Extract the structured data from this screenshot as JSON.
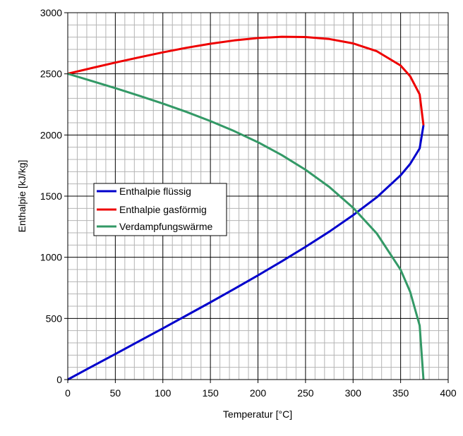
{
  "chart_data": {
    "type": "line",
    "title": "",
    "xlabel": "Temperatur [°C]",
    "ylabel": "Enthalpie [kJ/kg]",
    "xlim": [
      0,
      400
    ],
    "ylim": [
      0,
      3000
    ],
    "xticks": [
      0,
      50,
      100,
      150,
      200,
      250,
      300,
      350,
      400
    ],
    "yticks": [
      0,
      500,
      1000,
      1500,
      2000,
      2500,
      3000
    ],
    "x_minor_step": 10,
    "y_minor_step": 100,
    "grid": true,
    "legend_position": "left-center",
    "series": [
      {
        "name": "Enthalpie flüssig",
        "color": "#0000cc",
        "points": [
          [
            0,
            0
          ],
          [
            25,
            105
          ],
          [
            50,
            209
          ],
          [
            75,
            314
          ],
          [
            100,
            419
          ],
          [
            125,
            525
          ],
          [
            150,
            632
          ],
          [
            175,
            741
          ],
          [
            200,
            852
          ],
          [
            225,
            967
          ],
          [
            250,
            1085
          ],
          [
            275,
            1210
          ],
          [
            300,
            1344
          ],
          [
            325,
            1491
          ],
          [
            350,
            1670
          ],
          [
            360,
            1763
          ],
          [
            370,
            1890
          ],
          [
            374,
            2080
          ]
        ]
      },
      {
        "name": "Enthalpie gasförmig",
        "color": "#ee0000",
        "points": [
          [
            0,
            2501
          ],
          [
            25,
            2547
          ],
          [
            50,
            2592
          ],
          [
            75,
            2635
          ],
          [
            100,
            2676
          ],
          [
            125,
            2713
          ],
          [
            150,
            2746
          ],
          [
            175,
            2773
          ],
          [
            200,
            2793
          ],
          [
            225,
            2803
          ],
          [
            250,
            2801
          ],
          [
            275,
            2785
          ],
          [
            300,
            2749
          ],
          [
            325,
            2685
          ],
          [
            350,
            2568
          ],
          [
            360,
            2481
          ],
          [
            370,
            2332
          ],
          [
            374,
            2080
          ]
        ]
      },
      {
        "name": "Verdampfungswärme",
        "color": "#339966",
        "points": [
          [
            0,
            2501
          ],
          [
            25,
            2442
          ],
          [
            50,
            2383
          ],
          [
            75,
            2321
          ],
          [
            100,
            2257
          ],
          [
            125,
            2188
          ],
          [
            150,
            2114
          ],
          [
            175,
            2032
          ],
          [
            200,
            1941
          ],
          [
            225,
            1836
          ],
          [
            250,
            1716
          ],
          [
            275,
            1575
          ],
          [
            300,
            1405
          ],
          [
            325,
            1194
          ],
          [
            350,
            898
          ],
          [
            360,
            718
          ],
          [
            370,
            442
          ],
          [
            374,
            0
          ]
        ]
      }
    ]
  }
}
